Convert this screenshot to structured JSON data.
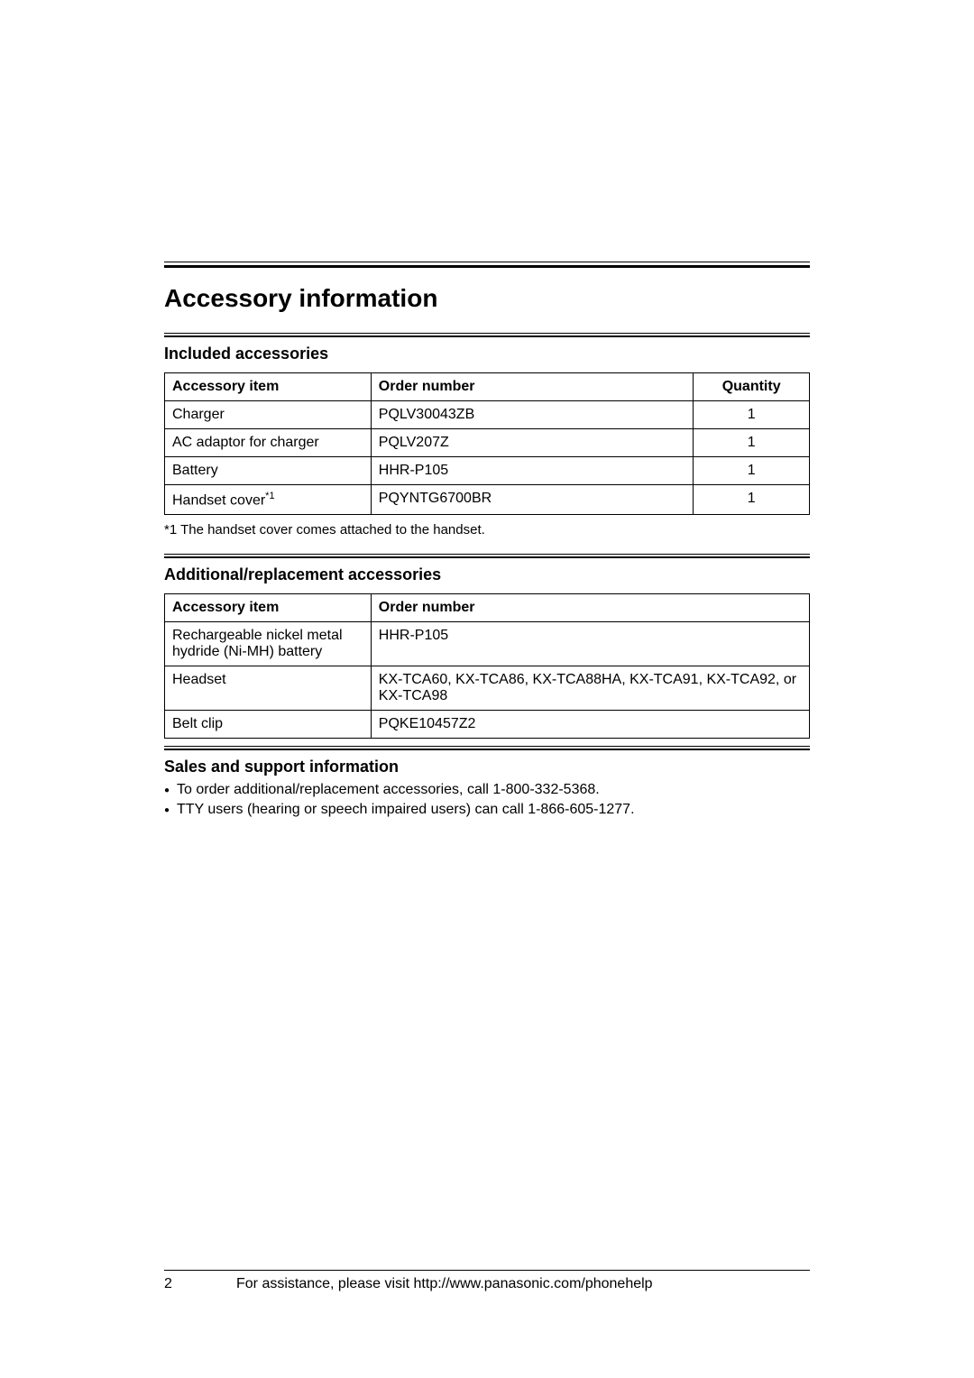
{
  "heading": "Accessory information",
  "included": {
    "title": "Included accessories",
    "headers": {
      "item": "Accessory item",
      "order": "Order number",
      "qty": "Quantity"
    },
    "rows": [
      {
        "item": "Charger",
        "order": "PQLV30043ZB",
        "qty": "1"
      },
      {
        "item": "AC adaptor for charger",
        "order": "PQLV207Z",
        "qty": "1"
      },
      {
        "item": "Battery",
        "order": "HHR-P105",
        "qty": "1"
      },
      {
        "item": "Handset cover",
        "sup": "*1",
        "order": "PQYNTG6700BR",
        "qty": "1"
      }
    ],
    "footnote": "*1 The handset cover comes attached to the handset."
  },
  "additional": {
    "title": "Additional/replacement accessories",
    "headers": {
      "item": "Accessory item",
      "order": "Order number"
    },
    "rows": [
      {
        "item": "Rechargeable nickel metal hydride (Ni-MH) battery",
        "order": "HHR-P105"
      },
      {
        "item": "Headset",
        "order": "KX-TCA60, KX-TCA86, KX-TCA88HA, KX-TCA91, KX-TCA92, or KX-TCA98"
      },
      {
        "item": "Belt clip",
        "order": "PQKE10457Z2"
      }
    ]
  },
  "sales": {
    "title": "Sales and support information",
    "bullets": [
      "To order additional/replacement accessories, call 1-800-332-5368.",
      "TTY users (hearing or speech impaired users) can call 1-866-605-1277."
    ]
  },
  "footer": {
    "page": "2",
    "text": "For assistance, please visit http://www.panasonic.com/phonehelp"
  }
}
